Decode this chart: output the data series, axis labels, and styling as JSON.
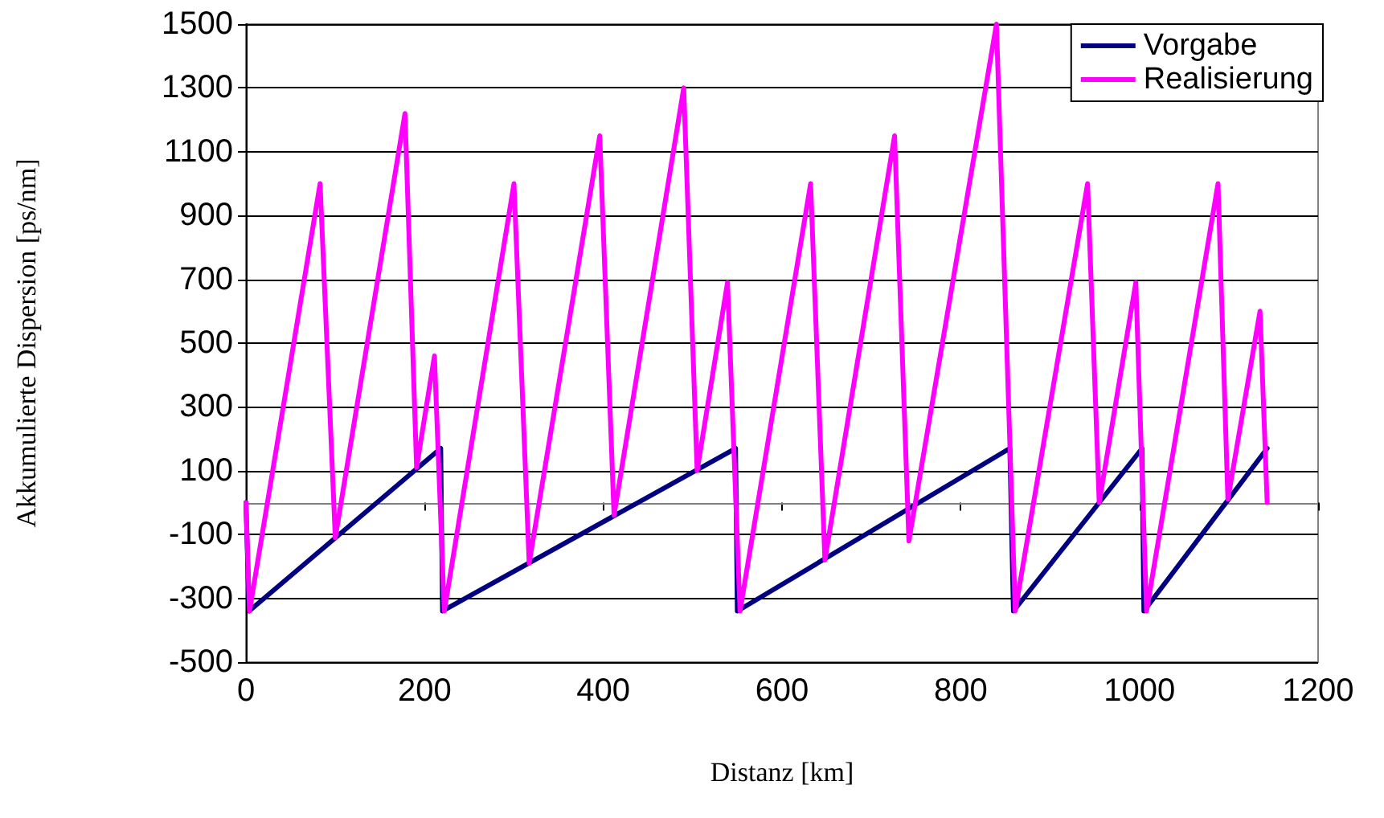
{
  "chart_data": {
    "type": "line",
    "xlabel": "Distanz [km]",
    "ylabel": "Akkumulierte Dispersion [ps/nm]",
    "xlim": [
      0,
      1200
    ],
    "xticks": [
      0,
      200,
      400,
      600,
      800,
      1000,
      1200
    ],
    "ylim": [
      -500,
      1500
    ],
    "yticks": [
      -500,
      -300,
      -100,
      100,
      300,
      500,
      700,
      900,
      1100,
      1300,
      1500
    ],
    "grid": "y",
    "legend": "top right",
    "marker": "none",
    "line_style": "solid",
    "ref_lines": [
      {
        "axis": "y",
        "value": 0,
        "color": "#808080"
      }
    ],
    "series": [
      {
        "name": "Vorgabe",
        "color": "#000080",
        "x": [
          0,
          3.5,
          218,
          220,
          548,
          550,
          855,
          859,
          1003,
          1005,
          1143
        ],
        "values": [
          0,
          -340,
          170,
          -340,
          170,
          -340,
          170,
          -340,
          170,
          -340,
          170
        ]
      },
      {
        "name": "Realisierung",
        "color": "#ff00ff",
        "x": [
          0,
          4,
          83,
          100,
          178,
          191,
          211,
          222,
          300,
          317,
          396,
          412,
          490,
          505,
          539,
          553,
          632,
          648,
          726,
          742,
          840,
          861,
          942,
          955,
          996,
          1008,
          1088,
          1099,
          1135,
          1143
        ],
        "values": [
          0,
          -340,
          1000,
          -110,
          1220,
          110,
          460,
          -340,
          1000,
          -190,
          1150,
          -40,
          1300,
          100,
          690,
          -340,
          1000,
          -180,
          1150,
          -120,
          1500,
          -340,
          1000,
          0,
          690,
          -340,
          1000,
          10,
          600,
          0
        ]
      }
    ]
  }
}
